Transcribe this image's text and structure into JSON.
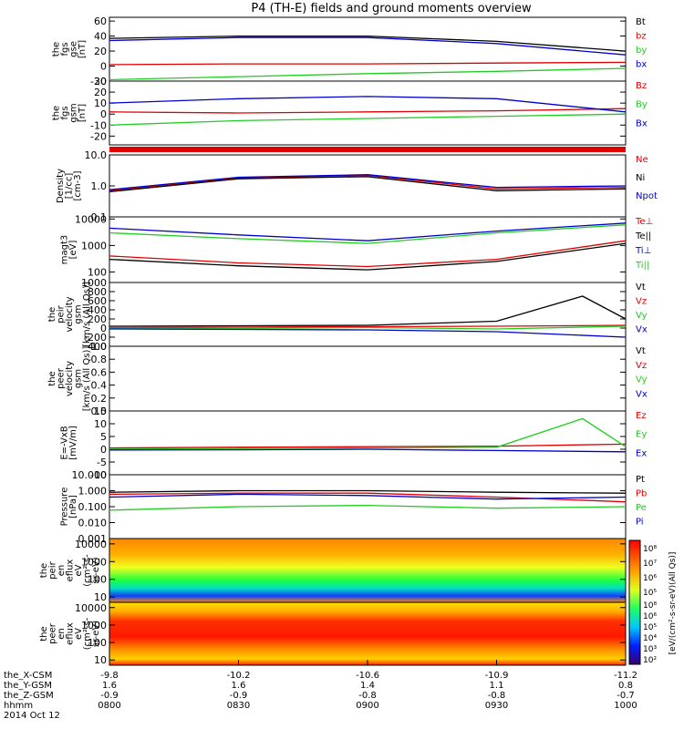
{
  "title": "P4 (TH-E) fields and ground moments overview",
  "colors": {
    "black": "#000000",
    "red": "#e00000",
    "green": "#22cc22",
    "blue": "#0000cc"
  },
  "chart_data": {
    "type": "line",
    "x_axis": {
      "time_range": [
        "0800",
        "1000"
      ],
      "tick_times": [
        "0800",
        "0830",
        "0900",
        "0930",
        "1000"
      ],
      "orbit_rows": [
        {
          "label": "the_X-CSM",
          "values": [
            "-9.8",
            "-10.2",
            "-10.6",
            "-10.9",
            "-11.2"
          ]
        },
        {
          "label": "the_Y-GSM",
          "values": [
            "1.6",
            "1.6",
            "1.4",
            "1.1",
            "0.8"
          ]
        },
        {
          "label": "the_Z-GSM",
          "values": [
            "-0.9",
            "-0.9",
            "-0.8",
            "-0.8",
            "-0.7"
          ]
        },
        {
          "label": "hhmm",
          "values": [
            "0800",
            "0830",
            "0900",
            "0930",
            "1000"
          ]
        }
      ],
      "date": "2014 Oct 12"
    },
    "panels": [
      {
        "id": "fgs-gse",
        "type": "line",
        "ylabel": [
          "the",
          "fgs",
          "gse",
          "[nT]"
        ],
        "ylim": [
          -20,
          65
        ],
        "ticks": [
          "60",
          "40",
          "20",
          "0",
          "-20"
        ],
        "tick_values": [
          60,
          40,
          20,
          0,
          -20
        ],
        "series": [
          {
            "name": "Bt",
            "color": "black",
            "x": [
              0,
              30,
              60,
              90,
              120
            ],
            "y": [
              37,
              40,
              40,
              33,
              20
            ]
          },
          {
            "name": "bz",
            "color": "red",
            "x": [
              0,
              30,
              60,
              90,
              120
            ],
            "y": [
              2,
              3,
              3,
              4,
              5
            ]
          },
          {
            "name": "by",
            "color": "green",
            "x": [
              0,
              30,
              60,
              90,
              120
            ],
            "y": [
              -18,
              -14,
              -10,
              -7,
              -3
            ]
          },
          {
            "name": "bx",
            "color": "blue",
            "x": [
              0,
              30,
              60,
              90,
              120
            ],
            "y": [
              34,
              38,
              38,
              30,
              15
            ]
          }
        ]
      },
      {
        "id": "fgs-gsm",
        "type": "line",
        "ylabel": [
          "the",
          "fgs",
          "gsm",
          "[nT]"
        ],
        "ylim": [
          -28,
          30
        ],
        "ticks": [
          "30",
          "20",
          "10",
          "0",
          "-10",
          "-20"
        ],
        "tick_values": [
          30,
          20,
          10,
          0,
          -10,
          -20
        ],
        "series": [
          {
            "name": "Bz",
            "color": "red",
            "x": [
              0,
              30,
              60,
              90,
              120
            ],
            "y": [
              2,
              1,
              2,
              3,
              5
            ]
          },
          {
            "name": "By",
            "color": "green",
            "x": [
              0,
              30,
              60,
              90,
              120
            ],
            "y": [
              -10,
              -6,
              -4,
              -2,
              0
            ]
          },
          {
            "name": "Bx",
            "color": "blue",
            "x": [
              0,
              30,
              60,
              90,
              120
            ],
            "y": [
              10,
              14,
              16,
              14,
              2
            ]
          }
        ]
      },
      {
        "id": "density",
        "type": "line",
        "ylabel": [
          "Density",
          "[1/cc]",
          "[cm-3]"
        ],
        "log": true,
        "ylim": [
          0.1,
          10
        ],
        "ticks": [
          "10.0",
          "1.0",
          "0.1"
        ],
        "tick_values": [
          10,
          1,
          0.1
        ],
        "series": [
          {
            "name": "Ne",
            "color": "red",
            "x": [
              0,
              30,
              60,
              90,
              120
            ],
            "y": [
              0.7,
              1.8,
              2.2,
              0.8,
              0.9
            ]
          },
          {
            "name": "Ni",
            "color": "black",
            "x": [
              0,
              30,
              60,
              90,
              120
            ],
            "y": [
              0.65,
              1.7,
              2.0,
              0.7,
              0.8
            ]
          },
          {
            "name": "Npot",
            "color": "blue",
            "x": [
              0,
              30,
              60,
              90,
              120
            ],
            "y": [
              0.75,
              1.9,
              2.3,
              0.9,
              1.0
            ]
          }
        ]
      },
      {
        "id": "temperature",
        "type": "line",
        "ylabel": [
          "magt3",
          "[eV]"
        ],
        "log": true,
        "ylim": [
          40,
          12000
        ],
        "ticks": [
          "10000",
          "1000",
          "100"
        ],
        "tick_values": [
          10000,
          1000,
          100
        ],
        "series": [
          {
            "name": "Te⊥",
            "color": "red",
            "x": [
              0,
              30,
              60,
              90,
              120
            ],
            "y": [
              400,
              220,
              160,
              300,
              1500
            ]
          },
          {
            "name": "Te||",
            "color": "black",
            "x": [
              0,
              30,
              60,
              90,
              120
            ],
            "y": [
              300,
              170,
              120,
              250,
              1200
            ]
          },
          {
            "name": "Ti⊥",
            "color": "blue",
            "x": [
              0,
              30,
              60,
              90,
              120
            ],
            "y": [
              4500,
              2500,
              1500,
              3500,
              7000
            ]
          },
          {
            "name": "Ti||",
            "color": "green",
            "x": [
              0,
              30,
              60,
              90,
              120
            ],
            "y": [
              3000,
              1800,
              1200,
              3000,
              6000
            ]
          }
        ]
      },
      {
        "id": "peir-velocity",
        "type": "line",
        "ylabel": [
          "the",
          "peir",
          "velocity",
          "gsm",
          "[km/s (All Qs)]"
        ],
        "ylim": [
          -400,
          1000
        ],
        "ticks": [
          "1000",
          "800",
          "600",
          "400",
          "200",
          "0",
          "-200",
          "-400"
        ],
        "tick_values": [
          1000,
          800,
          600,
          400,
          200,
          0,
          -200,
          -400
        ],
        "series": [
          {
            "name": "Vt",
            "color": "black",
            "x": [
              0,
              30,
              60,
              90,
              110,
              120
            ],
            "y": [
              40,
              50,
              60,
              150,
              700,
              200
            ]
          },
          {
            "name": "Vz",
            "color": "red",
            "x": [
              0,
              30,
              60,
              90,
              120
            ],
            "y": [
              10,
              20,
              30,
              40,
              60
            ]
          },
          {
            "name": "Vy",
            "color": "green",
            "x": [
              0,
              30,
              60,
              90,
              120
            ],
            "y": [
              0,
              -10,
              10,
              -20,
              40
            ]
          },
          {
            "name": "Vx",
            "color": "blue",
            "x": [
              0,
              30,
              60,
              90,
              120
            ],
            "y": [
              -20,
              -30,
              -40,
              -80,
              -200
            ]
          }
        ]
      },
      {
        "id": "peer-velocity",
        "type": "line",
        "ylabel": [
          "the",
          "peer",
          "velocity",
          "gsm",
          "[km/s (All Qs)]"
        ],
        "ylim": [
          0,
          1
        ],
        "ticks": [
          "1.0",
          "0.8",
          "0.6",
          "0.4",
          "0.2",
          "0.0"
        ],
        "tick_values": [
          1,
          0.8,
          0.6,
          0.4,
          0.2,
          0
        ],
        "series": [
          {
            "name": "Vt",
            "color": "black",
            "x": [],
            "y": []
          },
          {
            "name": "Vz",
            "color": "red",
            "x": [],
            "y": []
          },
          {
            "name": "Vy",
            "color": "green",
            "x": [],
            "y": []
          },
          {
            "name": "Vx",
            "color": "blue",
            "x": [],
            "y": []
          }
        ]
      },
      {
        "id": "e-field",
        "type": "line",
        "ylabel": [
          "E=-VxB",
          "[mV/m]"
        ],
        "ylim": [
          -10,
          15
        ],
        "ticks": [
          "15",
          "10",
          "5",
          "0",
          "-5",
          "-10"
        ],
        "tick_values": [
          15,
          10,
          5,
          0,
          -5,
          -10
        ],
        "series": [
          {
            "name": "Ez",
            "color": "red",
            "x": [
              0,
              30,
              60,
              90,
              120
            ],
            "y": [
              0.5,
              0.8,
              1,
              1.2,
              2
            ]
          },
          {
            "name": "Ey",
            "color": "green",
            "x": [
              0,
              30,
              60,
              90,
              110,
              120
            ],
            "y": [
              0,
              0.3,
              0.5,
              0.8,
              12,
              1
            ]
          },
          {
            "name": "Ex",
            "color": "blue",
            "x": [
              0,
              30,
              60,
              90,
              120
            ],
            "y": [
              -0.3,
              -0.2,
              0,
              -0.5,
              -1
            ]
          }
        ]
      },
      {
        "id": "pressure",
        "type": "line",
        "ylabel": [
          "Pressure",
          "[nPa]"
        ],
        "log": true,
        "ylim": [
          0.001,
          10
        ],
        "ticks": [
          "10.000",
          "1.000",
          "0.100",
          "0.010",
          "0.001"
        ],
        "tick_values": [
          10,
          1,
          0.1,
          0.01,
          0.001
        ],
        "series": [
          {
            "name": "Pt",
            "color": "black",
            "x": [
              0,
              30,
              60,
              90,
              120
            ],
            "y": [
              0.8,
              1.0,
              1.0,
              0.8,
              0.7
            ]
          },
          {
            "name": "Pb",
            "color": "red",
            "x": [
              0,
              30,
              60,
              90,
              120
            ],
            "y": [
              0.6,
              0.7,
              0.7,
              0.4,
              0.2
            ]
          },
          {
            "name": "Pe",
            "color": "green",
            "x": [
              0,
              30,
              60,
              90,
              120
            ],
            "y": [
              0.06,
              0.1,
              0.12,
              0.08,
              0.1
            ]
          },
          {
            "name": "Pi",
            "color": "blue",
            "x": [
              0,
              30,
              60,
              90,
              120
            ],
            "y": [
              0.4,
              0.6,
              0.5,
              0.3,
              0.4
            ]
          }
        ]
      },
      {
        "id": "peir-eflux",
        "type": "heatmap",
        "ylabel": [
          "the",
          "peir",
          "en",
          "eflux",
          "eV",
          "(cm²-s-",
          "sr-eV)"
        ],
        "ylim": [
          5,
          20000
        ],
        "log": true,
        "ticks": [
          "10000",
          "1000",
          "100",
          "10"
        ],
        "tick_values": [
          10000,
          1000,
          100,
          10
        ]
      },
      {
        "id": "peer-eflux",
        "type": "heatmap",
        "ylabel": [
          "the",
          "peer",
          "en",
          "eflux",
          "eV",
          "(cm²-s-",
          "sr-eV)"
        ],
        "ylim": [
          5,
          20000
        ],
        "log": true,
        "ticks": [
          "10000",
          "1000",
          "100",
          "10"
        ],
        "tick_values": [
          10000,
          1000,
          100,
          10
        ]
      }
    ],
    "colorbar": {
      "label": "[eV/(cm²-s-sr-eV)(All Qs)]",
      "upper_ticks": [
        "10⁸",
        "10⁷",
        "10⁶",
        "10⁵"
      ],
      "lower_ticks": [
        "10⁸",
        "10⁶",
        "10⁵",
        "10⁴",
        "10³",
        "10²"
      ]
    }
  }
}
